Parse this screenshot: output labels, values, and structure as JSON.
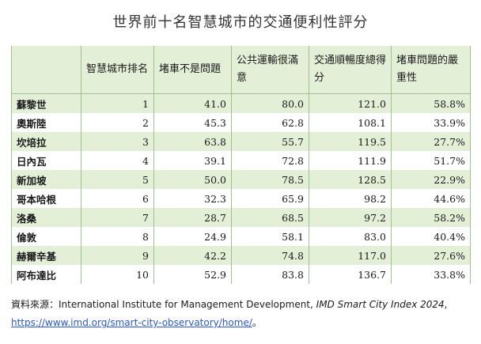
{
  "title": "世界前十名智慧城市的交通便利性評分",
  "table": {
    "headers": [
      "",
      "智慧城市排名",
      "堵車不是問題",
      "公共運輸很滿意",
      "交通順暢度總得分",
      "堵車問題的嚴重性"
    ],
    "rows": [
      [
        "蘇黎世",
        "1",
        "41.0",
        "80.0",
        "121.0",
        "58.8%"
      ],
      [
        "奧斯陸",
        "2",
        "45.3",
        "62.8",
        "108.1",
        "33.9%"
      ],
      [
        "坎培拉",
        "3",
        "63.8",
        "55.7",
        "119.5",
        "27.7%"
      ],
      [
        "日內瓦",
        "4",
        "39.1",
        "72.8",
        "111.9",
        "51.7%"
      ],
      [
        "新加坡",
        "5",
        "50.0",
        "78.5",
        "128.5",
        "22.9%"
      ],
      [
        "哥本哈根",
        "6",
        "32.3",
        "65.9",
        "98.2",
        "44.6%"
      ],
      [
        "洛桑",
        "7",
        "28.7",
        "68.5",
        "97.2",
        "58.2%"
      ],
      [
        "倫敦",
        "8",
        "24.9",
        "58.1",
        "83.0",
        "40.4%"
      ],
      [
        "赫爾辛基",
        "9",
        "42.2",
        "74.8",
        "117.0",
        "27.6%"
      ],
      [
        "阿布達比",
        "10",
        "52.9",
        "83.8",
        "136.7",
        "33.8%"
      ]
    ]
  },
  "source": {
    "prefix": "資料來源：",
    "org": "International Institute for Management Development, ",
    "publication": "IMD Smart City Index 2024",
    "separator": ", ",
    "link": "https://www.imd.org/smart-city-observatory/home/",
    "suffix": "。"
  }
}
